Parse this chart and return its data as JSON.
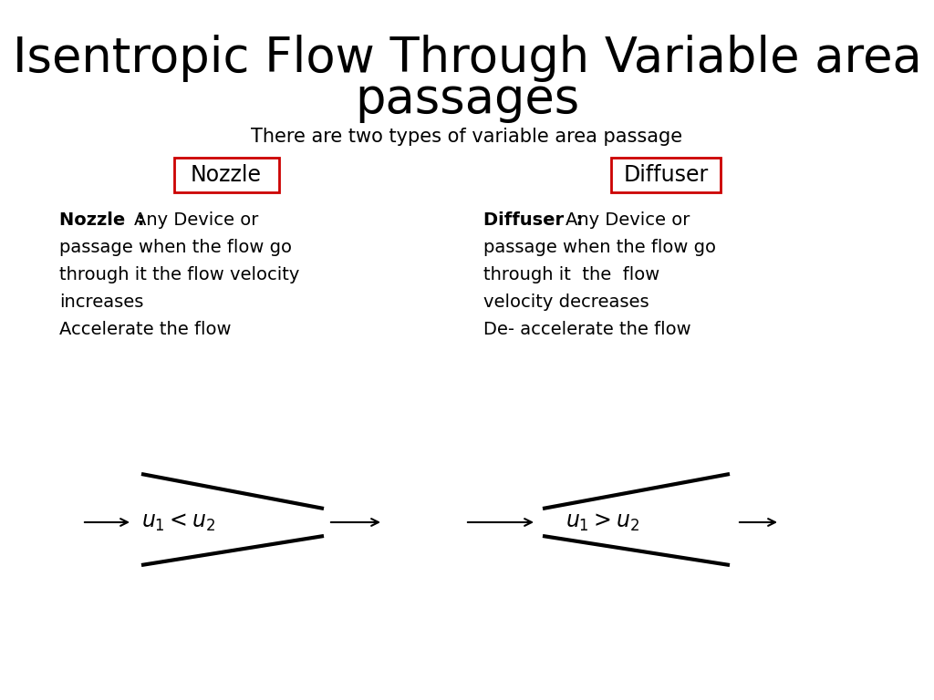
{
  "title_line1": "Isentropic Flow Through Variable area",
  "title_line2": "passages",
  "subtitle": "There are two types of variable area passage",
  "bg_color": "#ffffff",
  "title_fontsize": 38,
  "subtitle_fontsize": 15,
  "nozzle_label": "Nozzle",
  "diffuser_label": "Diffuser",
  "box_color": "#cc0000",
  "desc_fontsize": 14,
  "nozzle_desc_lines": [
    [
      "bold",
      "Nozzle  : "
    ],
    [
      "regular",
      "Any Device or"
    ],
    [
      "regular",
      "passage when the flow go"
    ],
    [
      "regular",
      "through it the flow velocity"
    ],
    [
      "regular",
      "increases"
    ],
    [
      "regular",
      "Accelerate the flow"
    ]
  ],
  "diffuser_desc_lines": [
    [
      "bold",
      "Diffuser  : "
    ],
    [
      "regular",
      "Any Device or"
    ],
    [
      "regular",
      "passage when the flow go"
    ],
    [
      "regular",
      "through it  the  flow"
    ],
    [
      "regular",
      "velocity decreases"
    ],
    [
      "regular",
      "De- accelerate the flow"
    ]
  ]
}
